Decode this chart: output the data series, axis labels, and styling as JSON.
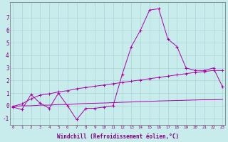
{
  "xlabel": "Windchill (Refroidissement éolien,°C)",
  "background_color": "#c8ecec",
  "grid_color": "#aad4d4",
  "line_color": "#aa00aa",
  "x_hours": [
    0,
    1,
    2,
    3,
    4,
    5,
    6,
    7,
    8,
    9,
    10,
    11,
    12,
    13,
    14,
    15,
    16,
    17,
    18,
    19,
    20,
    21,
    22,
    23
  ],
  "line1": [
    -0.1,
    -0.3,
    0.9,
    0.2,
    -0.2,
    1.0,
    0.0,
    -1.1,
    -0.2,
    -0.2,
    -0.1,
    0.0,
    2.5,
    4.7,
    6.0,
    7.6,
    7.7,
    5.3,
    4.7,
    3.0,
    2.8,
    2.8,
    3.0,
    1.5
  ],
  "line2": [
    -0.05,
    0.15,
    0.55,
    0.85,
    0.95,
    1.1,
    1.2,
    1.35,
    1.45,
    1.55,
    1.65,
    1.75,
    1.85,
    1.95,
    2.05,
    2.15,
    2.25,
    2.35,
    2.45,
    2.55,
    2.65,
    2.72,
    2.8,
    2.8
  ],
  "line3": [
    -0.05,
    0.0,
    0.0,
    0.05,
    0.05,
    0.1,
    0.1,
    0.15,
    0.18,
    0.2,
    0.22,
    0.25,
    0.28,
    0.3,
    0.33,
    0.35,
    0.38,
    0.4,
    0.42,
    0.44,
    0.46,
    0.48,
    0.48,
    0.5
  ],
  "ylim": [
    -1.5,
    8.2
  ],
  "yticks": [
    -1,
    0,
    1,
    2,
    3,
    4,
    5,
    6,
    7
  ],
  "xtick_labels": [
    "0",
    "1",
    "2",
    "3",
    "4",
    "5",
    "6",
    "7",
    "8",
    "9",
    "10",
    "11",
    "12",
    "13",
    "14",
    "15",
    "16",
    "17",
    "18",
    "19",
    "20",
    "21",
    "22",
    "23"
  ],
  "font_color": "#800080",
  "axis_color": "#808080"
}
